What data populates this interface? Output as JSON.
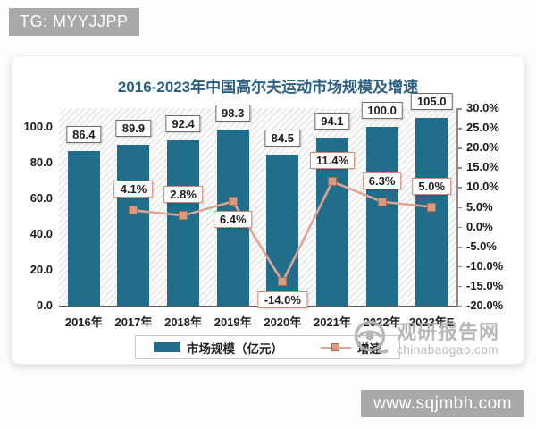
{
  "top_badge": {
    "label": "TG: MYYJJPP"
  },
  "bottom_badge": {
    "label": "www.sqjmbh.com"
  },
  "watermark": {
    "site_name": "观研报告网",
    "site_domain": "chinabaogao.com"
  },
  "chart_data": {
    "type": "bar+line",
    "title": "2016-2023年中国高尔夫运动市场规模及增速",
    "categories": [
      "2016年",
      "2017年",
      "2018年",
      "2019年",
      "2020年",
      "2021年",
      "2022年",
      "2023年E"
    ],
    "series": [
      {
        "name": "市场规模（亿元）",
        "type": "bar",
        "axis": "left",
        "color": "#206d8c",
        "values": [
          86.4,
          89.9,
          92.4,
          98.3,
          84.5,
          94.1,
          100.0,
          105.0
        ]
      },
      {
        "name": "增速",
        "type": "line",
        "axis": "right",
        "color": "#dfa493",
        "marker_color": "#d99b80",
        "marker_border": "#b26a4d",
        "values": [
          null,
          4.1,
          2.8,
          6.4,
          -14.0,
          11.4,
          6.3,
          5.0
        ],
        "label_below": [
          false,
          false,
          false,
          true,
          true,
          false,
          false,
          false
        ]
      }
    ],
    "left_axis": {
      "min": 0,
      "max": 110.5,
      "ticks": [
        0,
        20,
        40,
        60,
        80,
        100
      ],
      "unit": ""
    },
    "right_axis": {
      "min": -20,
      "max": 30,
      "ticks": [
        30,
        25,
        20,
        15,
        10,
        5,
        0,
        -5,
        -10,
        -15,
        -20
      ],
      "unit": "%"
    },
    "legend": {
      "position": "bottom",
      "items": [
        "市场规模（亿元）",
        "增速"
      ]
    },
    "grid": false,
    "plot_background": "diagonal-hatch"
  }
}
